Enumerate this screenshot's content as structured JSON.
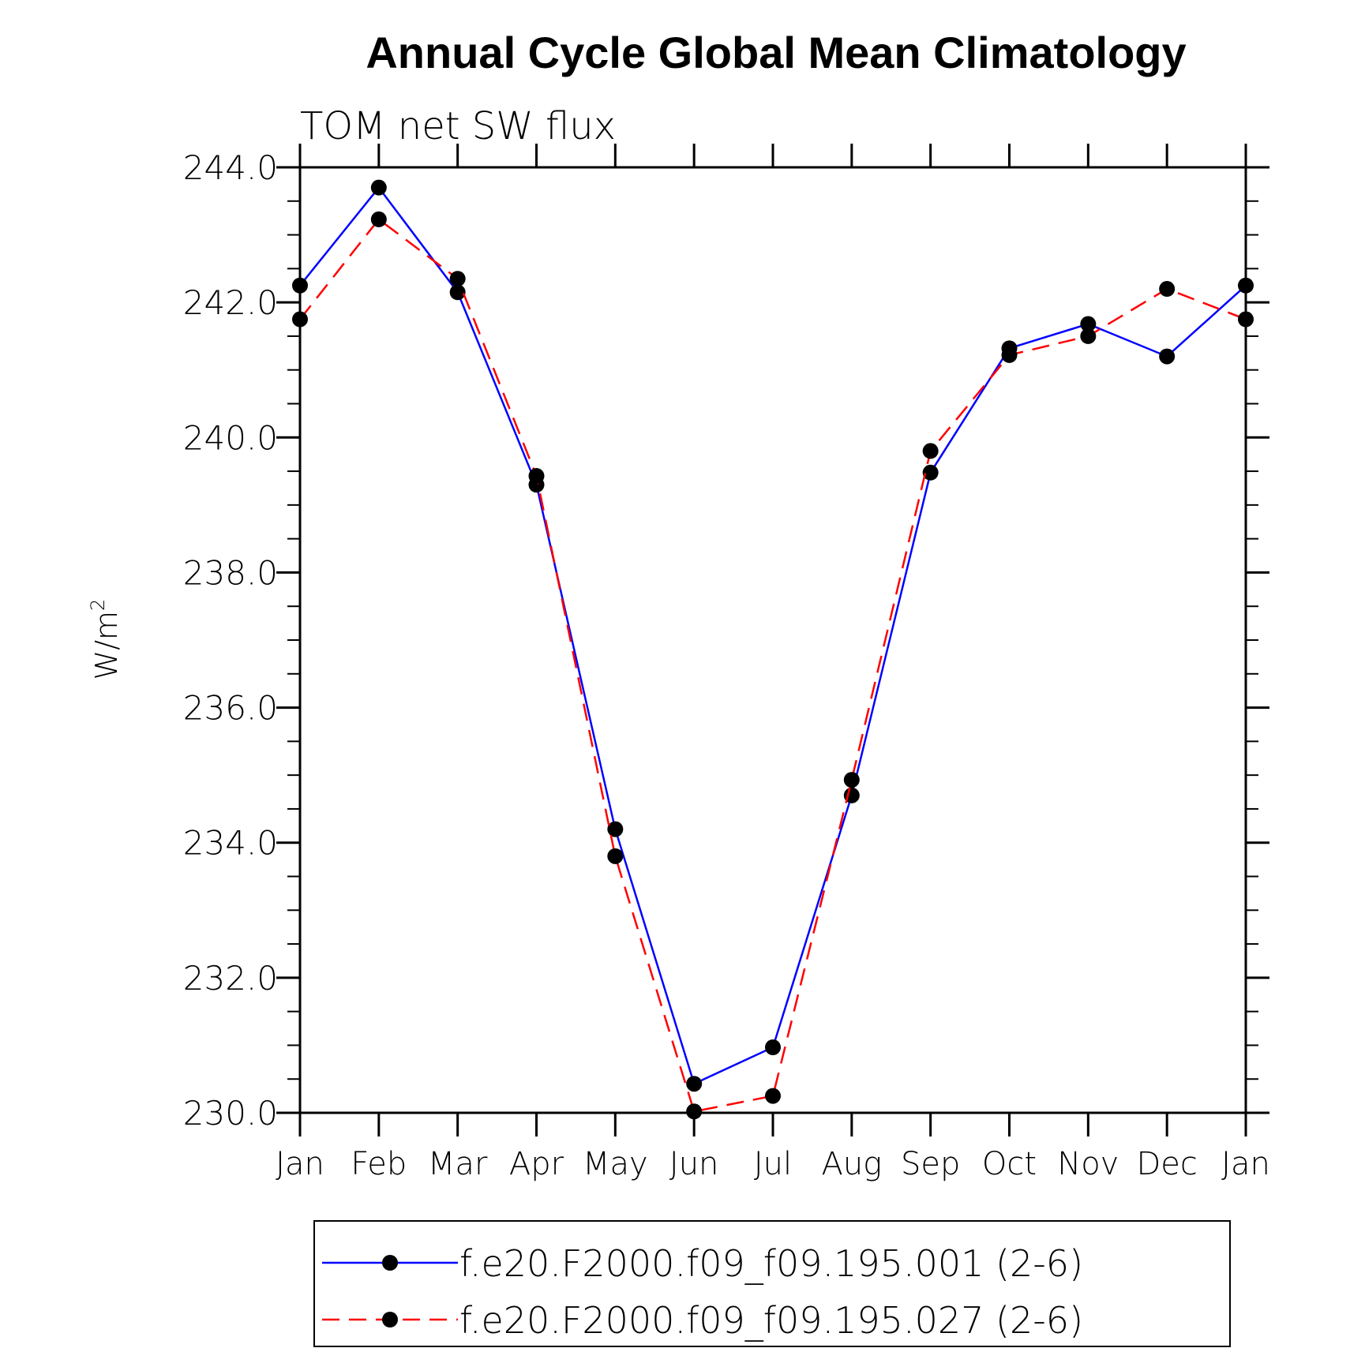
{
  "chart_data": {
    "type": "line",
    "title": "Annual Cycle Global Mean Climatology",
    "subtitle": "TOM net SW flux",
    "ylabel": "W/m",
    "ylabel_superscript": "2",
    "xlabel": "",
    "categories": [
      "Jan",
      "Feb",
      "Mar",
      "Apr",
      "May",
      "Jun",
      "Jul",
      "Aug",
      "Sep",
      "Oct",
      "Nov",
      "Dec",
      "Jan"
    ],
    "ylim": [
      230,
      244
    ],
    "yticks": [
      "230.0",
      "232.0",
      "234.0",
      "236.0",
      "238.0",
      "240.0",
      "242.0",
      "244.0"
    ],
    "y_minor_step": 0.5,
    "grid": false,
    "legend_position": "bottom",
    "series": [
      {
        "name": "f.e20.F2000.f09_f09.195.001 (2-6)",
        "color": "#0000ff",
        "line_style": "solid",
        "marker": "filled-circle",
        "values": [
          242.25,
          243.7,
          242.15,
          239.3,
          234.2,
          230.43,
          230.97,
          234.7,
          239.48,
          241.32,
          241.68,
          241.2,
          242.25
        ]
      },
      {
        "name": "f.e20.F2000.f09_f09.195.027 (2-6)",
        "color": "#ff0000",
        "line_style": "dashed",
        "marker": "filled-circle",
        "values": [
          241.75,
          243.23,
          242.35,
          239.43,
          233.8,
          230.02,
          230.25,
          234.93,
          239.8,
          241.22,
          241.5,
          242.2,
          241.75
        ]
      }
    ]
  }
}
